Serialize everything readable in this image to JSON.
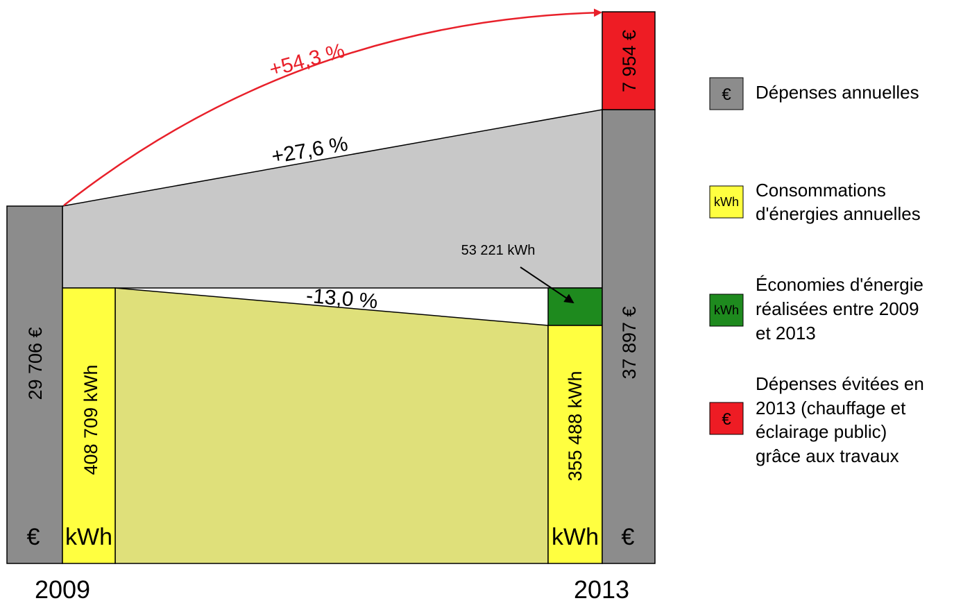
{
  "colors": {
    "expense_grey": "#8c8c8c",
    "flow_grey": "#c8c8c8",
    "energy_yellow": "#ffff40",
    "energy_flow": "#dfe07a",
    "savings_green": "#1e8a1e",
    "avoided_red": "#ee1c24",
    "arrow_red": "#e8202a"
  },
  "years": {
    "start": "2009",
    "end": "2013"
  },
  "bars": {
    "expense_2009": {
      "value": "29 706 €",
      "unit": "€"
    },
    "energy_2009": {
      "value": "408 709 kWh",
      "unit": "kWh"
    },
    "energy_2013": {
      "value": "355 488 kWh",
      "unit": "kWh"
    },
    "expense_2013": {
      "value": "37 897 €",
      "unit": "€"
    },
    "avoided_2013": {
      "value": "7 954 €"
    }
  },
  "changes": {
    "total": "+54,3 %",
    "expenses": "+27,6 %",
    "energy": "-13,0 %"
  },
  "callout": {
    "savings": "53 221 kWh"
  },
  "legend": [
    {
      "symbol": "€",
      "icon": "euro-symbol",
      "color": "#8c8c8c",
      "lines": [
        "Dépenses annuelles"
      ]
    },
    {
      "symbol": "kWh",
      "icon": "kwh-symbol",
      "color": "#ffff40",
      "lines": [
        "Consommations",
        "d'énergies annuelles"
      ]
    },
    {
      "symbol": "kWh",
      "icon": "kwh-symbol",
      "color": "#1e8a1e",
      "lines": [
        "Économies d'énergie",
        "réalisées entre 2009",
        "et 2013"
      ]
    },
    {
      "symbol": "€",
      "icon": "euro-symbol",
      "color": "#ee1c24",
      "lines": [
        "Dépenses évitées en",
        "2013 (chauffage et",
        "éclairage public)",
        "grâce aux travaux"
      ]
    }
  ]
}
